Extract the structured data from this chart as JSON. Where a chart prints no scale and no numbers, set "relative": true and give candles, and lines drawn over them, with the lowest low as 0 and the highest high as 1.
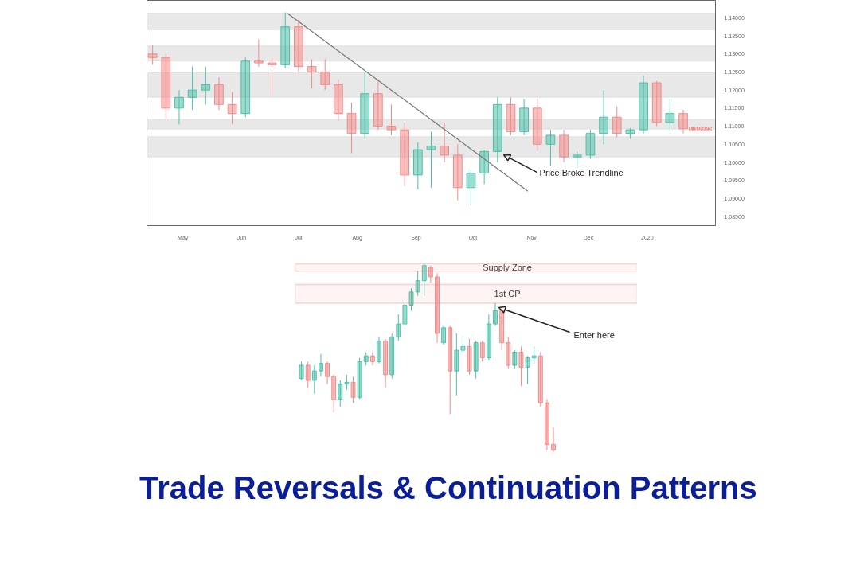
{
  "chart_data": [
    {
      "type": "candlestick",
      "colors": [
        "#f28b8b",
        "#f28b8b",
        "#4dbfa8",
        "#4dbfa8",
        "#4dbfa8",
        "#f28b8b",
        "#f28b8b",
        "#4dbfa8",
        "#f28b8b",
        "#f28b8b",
        "#4dbfa8",
        "#f28b8b",
        "#f28b8b",
        "#f28b8b",
        "#f28b8b",
        "#f28b8b",
        "#4dbfa8",
        "#f28b8b",
        "#f28b8b",
        "#f28b8b",
        "#4dbfa8",
        "#4dbfa8",
        "#f28b8b",
        "#f28b8b",
        "#4dbfa8",
        "#4dbfa8",
        "#4dbfa8",
        "#f28b8b",
        "#4dbfa8",
        "#f28b8b",
        "#4dbfa8",
        "#f28b8b",
        "#4dbfa8",
        "#4dbfa8",
        "#4dbfa8",
        "#f28b8b",
        "#4dbfa8",
        "#4dbfa8",
        "#f28b8b",
        "#4dbfa8",
        "#f28b8b"
      ],
      "x": [
        "2019-04-15",
        "2019-04-22",
        "2019-04-29",
        "2019-05-06",
        "2019-05-13",
        "2019-05-20",
        "2019-05-27",
        "2019-06-03",
        "2019-06-10",
        "2019-06-17",
        "2019-06-24",
        "2019-07-01",
        "2019-07-08",
        "2019-07-15",
        "2019-07-22",
        "2019-07-29",
        "2019-08-05",
        "2019-08-12",
        "2019-08-19",
        "2019-08-26",
        "2019-09-02",
        "2019-09-09",
        "2019-09-16",
        "2019-09-23",
        "2019-09-30",
        "2019-10-07",
        "2019-10-14",
        "2019-10-21",
        "2019-10-28",
        "2019-11-04",
        "2019-11-11",
        "2019-11-18",
        "2019-11-25",
        "2019-12-02",
        "2019-12-09",
        "2019-12-16",
        "2019-12-23",
        "2019-12-30",
        "2020-01-06",
        "2020-01-13",
        "2020-01-20"
      ],
      "ohlc": [
        [
          1.13,
          1.1325,
          1.127,
          1.129
        ],
        [
          1.129,
          1.13,
          1.112,
          1.115
        ],
        [
          1.115,
          1.12,
          1.1105,
          1.118
        ],
        [
          1.118,
          1.1265,
          1.1145,
          1.12
        ],
        [
          1.12,
          1.1265,
          1.116,
          1.1215
        ],
        [
          1.1215,
          1.1235,
          1.1145,
          1.116
        ],
        [
          1.116,
          1.1195,
          1.1105,
          1.1135
        ],
        [
          1.1135,
          1.129,
          1.1125,
          1.128
        ],
        [
          1.128,
          1.134,
          1.1265,
          1.1275
        ],
        [
          1.1275,
          1.129,
          1.1185,
          1.127
        ],
        [
          1.127,
          1.1415,
          1.126,
          1.1375
        ],
        [
          1.1375,
          1.1395,
          1.125,
          1.1265
        ],
        [
          1.1265,
          1.1285,
          1.1205,
          1.125
        ],
        [
          1.125,
          1.1285,
          1.12,
          1.1215
        ],
        [
          1.1215,
          1.123,
          1.1115,
          1.1135
        ],
        [
          1.1135,
          1.1165,
          1.1025,
          1.108
        ],
        [
          1.108,
          1.125,
          1.1065,
          1.119
        ],
        [
          1.119,
          1.123,
          1.109,
          1.11
        ],
        [
          1.11,
          1.116,
          1.1075,
          1.109
        ],
        [
          1.109,
          1.111,
          1.0935,
          1.0965
        ],
        [
          1.0965,
          1.1055,
          1.0925,
          1.1035
        ],
        [
          1.1035,
          1.1085,
          1.093,
          1.1045
        ],
        [
          1.1045,
          1.111,
          1.1,
          1.102
        ],
        [
          1.102,
          1.105,
          1.0895,
          1.093
        ],
        [
          1.093,
          1.098,
          1.088,
          1.097
        ],
        [
          1.097,
          1.1035,
          1.094,
          1.103
        ],
        [
          1.103,
          1.118,
          1.1,
          1.116
        ],
        [
          1.116,
          1.118,
          1.1075,
          1.1085
        ],
        [
          1.1085,
          1.1175,
          1.1075,
          1.115
        ],
        [
          1.115,
          1.1175,
          1.103,
          1.105
        ],
        [
          1.105,
          1.109,
          1.099,
          1.1075
        ],
        [
          1.1075,
          1.109,
          1.1,
          1.1015
        ],
        [
          1.1015,
          1.103,
          1.0985,
          1.102
        ],
        [
          1.102,
          1.109,
          1.101,
          1.108
        ],
        [
          1.108,
          1.12,
          1.105,
          1.1125
        ],
        [
          1.1125,
          1.1155,
          1.107,
          1.108
        ],
        [
          1.108,
          1.1095,
          1.1065,
          1.109
        ],
        [
          1.109,
          1.124,
          1.108,
          1.122
        ],
        [
          1.122,
          1.1225,
          1.11,
          1.111
        ],
        [
          1.111,
          1.1175,
          1.1085,
          1.1135
        ],
        [
          1.1135,
          1.1145,
          1.108,
          1.1093
        ]
      ],
      "series": [
        {
          "type": "line",
          "x": [
            "2019-06-25",
            "2019-10-30"
          ],
          "values": [
            1.1413,
            1.092
          ],
          "color": "#777777"
        }
      ],
      "bands": [
        {
          "axis": "y",
          "from": 1.1367,
          "to": 1.1413,
          "color": "#e8e8e8"
        },
        {
          "axis": "y",
          "from": 1.128,
          "to": 1.1322,
          "color": "#e8e8e8"
        },
        {
          "axis": "y",
          "from": 1.118,
          "to": 1.1248,
          "color": "#e8e8e8"
        },
        {
          "axis": "y",
          "from": 1.1092,
          "to": 1.1119,
          "color": "#e8e8e8"
        },
        {
          "axis": "y",
          "from": 1.1015,
          "to": 1.1071,
          "color": "#e8e8e8"
        }
      ],
      "annotations": [
        {
          "text": "Price Broke Trendline",
          "x": "2019-10-16",
          "y": 1.1025
        },
        {
          "text": "1.10925",
          "x": "2020-01-20",
          "y": 1.10925
        }
      ],
      "xlim": [
        "2019-04-12",
        "2020-02-06"
      ],
      "xticks": [
        {
          "value": "2019-05-01",
          "label": "May"
        },
        {
          "value": "2019-06-01",
          "label": "Jun"
        },
        {
          "value": "2019-07-01",
          "label": "Jul"
        },
        {
          "value": "2019-08-01",
          "label": "Aug"
        },
        {
          "value": "2019-09-01",
          "label": "Sep"
        },
        {
          "value": "2019-10-01",
          "label": "Oct"
        },
        {
          "value": "2019-11-01",
          "label": "Nov"
        },
        {
          "value": "2019-12-01",
          "label": "Dec"
        },
        {
          "value": "2020-01-01",
          "label": "2020"
        }
      ],
      "ylim": [
        1.0825,
        1.1448
      ],
      "yticks": [
        {
          "value": 1.085,
          "label": "1.08500"
        },
        {
          "value": 1.09,
          "label": "1.09000"
        },
        {
          "value": 1.095,
          "label": "1.09500"
        },
        {
          "value": 1.1,
          "label": "1.10000"
        },
        {
          "value": 1.105,
          "label": "1.10500"
        },
        {
          "value": 1.11,
          "label": "1.11000"
        },
        {
          "value": 1.115,
          "label": "1.11500"
        },
        {
          "value": 1.12,
          "label": "1.12000"
        },
        {
          "value": 1.125,
          "label": "1.12500"
        },
        {
          "value": 1.13,
          "label": "1.13000"
        },
        {
          "value": 1.135,
          "label": "1.13500"
        },
        {
          "value": 1.14,
          "label": "1.14000"
        }
      ],
      "grid": false
    },
    {
      "type": "candlestick",
      "relative": true,
      "colors": [
        "#4dbfa8",
        "#f28b8b",
        "#4dbfa8",
        "#4dbfa8",
        "#f28b8b",
        "#f28b8b",
        "#4dbfa8",
        "#4dbfa8",
        "#f28b8b",
        "#4dbfa8",
        "#4dbfa8",
        "#f28b8b",
        "#4dbfa8",
        "#f28b8b",
        "#4dbfa8",
        "#4dbfa8",
        "#4dbfa8",
        "#4dbfa8",
        "#4dbfa8",
        "#4dbfa8",
        "#f28b8b",
        "#f28b8b",
        "#4dbfa8",
        "#f28b8b",
        "#4dbfa8",
        "#4dbfa8",
        "#f28b8b",
        "#4dbfa8",
        "#f28b8b",
        "#4dbfa8",
        "#4dbfa8",
        "#f28b8b",
        "#f28b8b",
        "#4dbfa8",
        "#f28b8b",
        "#4dbfa8",
        "#4dbfa8",
        "#f28b8b",
        "#f28b8b",
        "#f28b8b"
      ],
      "title": "Trade Reversals & Continuation Patterns",
      "categories": [
        null,
        null,
        null,
        null,
        null,
        null,
        null,
        null,
        null,
        null,
        null,
        null,
        null,
        null,
        null,
        null,
        null,
        null,
        null,
        null,
        null,
        null,
        null,
        null,
        null,
        null,
        null,
        null,
        null,
        null,
        null,
        null,
        null,
        null,
        null,
        null,
        null,
        null,
        null,
        null
      ],
      "ohlc": [
        [
          0.39,
          0.48,
          0.38,
          0.46
        ],
        [
          0.46,
          0.48,
          0.34,
          0.38
        ],
        [
          0.38,
          0.46,
          0.31,
          0.43
        ],
        [
          0.43,
          0.52,
          0.4,
          0.47
        ],
        [
          0.47,
          0.48,
          0.36,
          0.4
        ],
        [
          0.4,
          0.41,
          0.21,
          0.28
        ],
        [
          0.28,
          0.38,
          0.24,
          0.36
        ],
        [
          0.36,
          0.41,
          0.33,
          0.37
        ],
        [
          0.37,
          0.4,
          0.26,
          0.29
        ],
        [
          0.29,
          0.5,
          0.28,
          0.48
        ],
        [
          0.48,
          0.53,
          0.46,
          0.51
        ],
        [
          0.51,
          0.53,
          0.46,
          0.48
        ],
        [
          0.48,
          0.61,
          0.47,
          0.59
        ],
        [
          0.59,
          0.6,
          0.34,
          0.41
        ],
        [
          0.41,
          0.63,
          0.39,
          0.61
        ],
        [
          0.61,
          0.73,
          0.59,
          0.68
        ],
        [
          0.68,
          0.8,
          0.67,
          0.78
        ],
        [
          0.78,
          0.87,
          0.75,
          0.85
        ],
        [
          0.85,
          0.96,
          0.83,
          0.91
        ],
        [
          0.91,
          1,
          0.83,
          0.99
        ],
        [
          0.98,
          0.99,
          0.9,
          0.93
        ],
        [
          0.93,
          0.95,
          0.58,
          0.63
        ],
        [
          0.58,
          0.67,
          0.57,
          0.66
        ],
        [
          0.66,
          0.67,
          0.2,
          0.43
        ],
        [
          0.43,
          0.63,
          0.3,
          0.54
        ],
        [
          0.54,
          0.61,
          0.53,
          0.56
        ],
        [
          0.56,
          0.6,
          0.41,
          0.43
        ],
        [
          0.43,
          0.59,
          0.39,
          0.58
        ],
        [
          0.58,
          0.59,
          0.48,
          0.5
        ],
        [
          0.5,
          0.73,
          0.49,
          0.68
        ],
        [
          0.68,
          0.79,
          0.67,
          0.75
        ],
        [
          0.75,
          0.77,
          0.54,
          0.58
        ],
        [
          0.58,
          0.61,
          0.44,
          0.46
        ],
        [
          0.46,
          0.54,
          0.44,
          0.53
        ],
        [
          0.53,
          0.56,
          0.35,
          0.45
        ],
        [
          0.45,
          0.51,
          0.36,
          0.5
        ],
        [
          0.5,
          0.56,
          0.47,
          0.51
        ],
        [
          0.51,
          0.53,
          0.24,
          0.26
        ],
        [
          0.26,
          0.28,
          0.01,
          0.04
        ],
        [
          0.04,
          0.13,
          0,
          0.01
        ]
      ],
      "bands": [
        {
          "axis": "y",
          "from": 0.96,
          "to": 1.0,
          "label": "Supply Zone",
          "color": "#f07078"
        },
        {
          "axis": "y",
          "from": 0.79,
          "to": 0.89,
          "label": "1st CP",
          "color": "#f07078"
        }
      ],
      "annotations": [
        "Enter here"
      ]
    }
  ]
}
